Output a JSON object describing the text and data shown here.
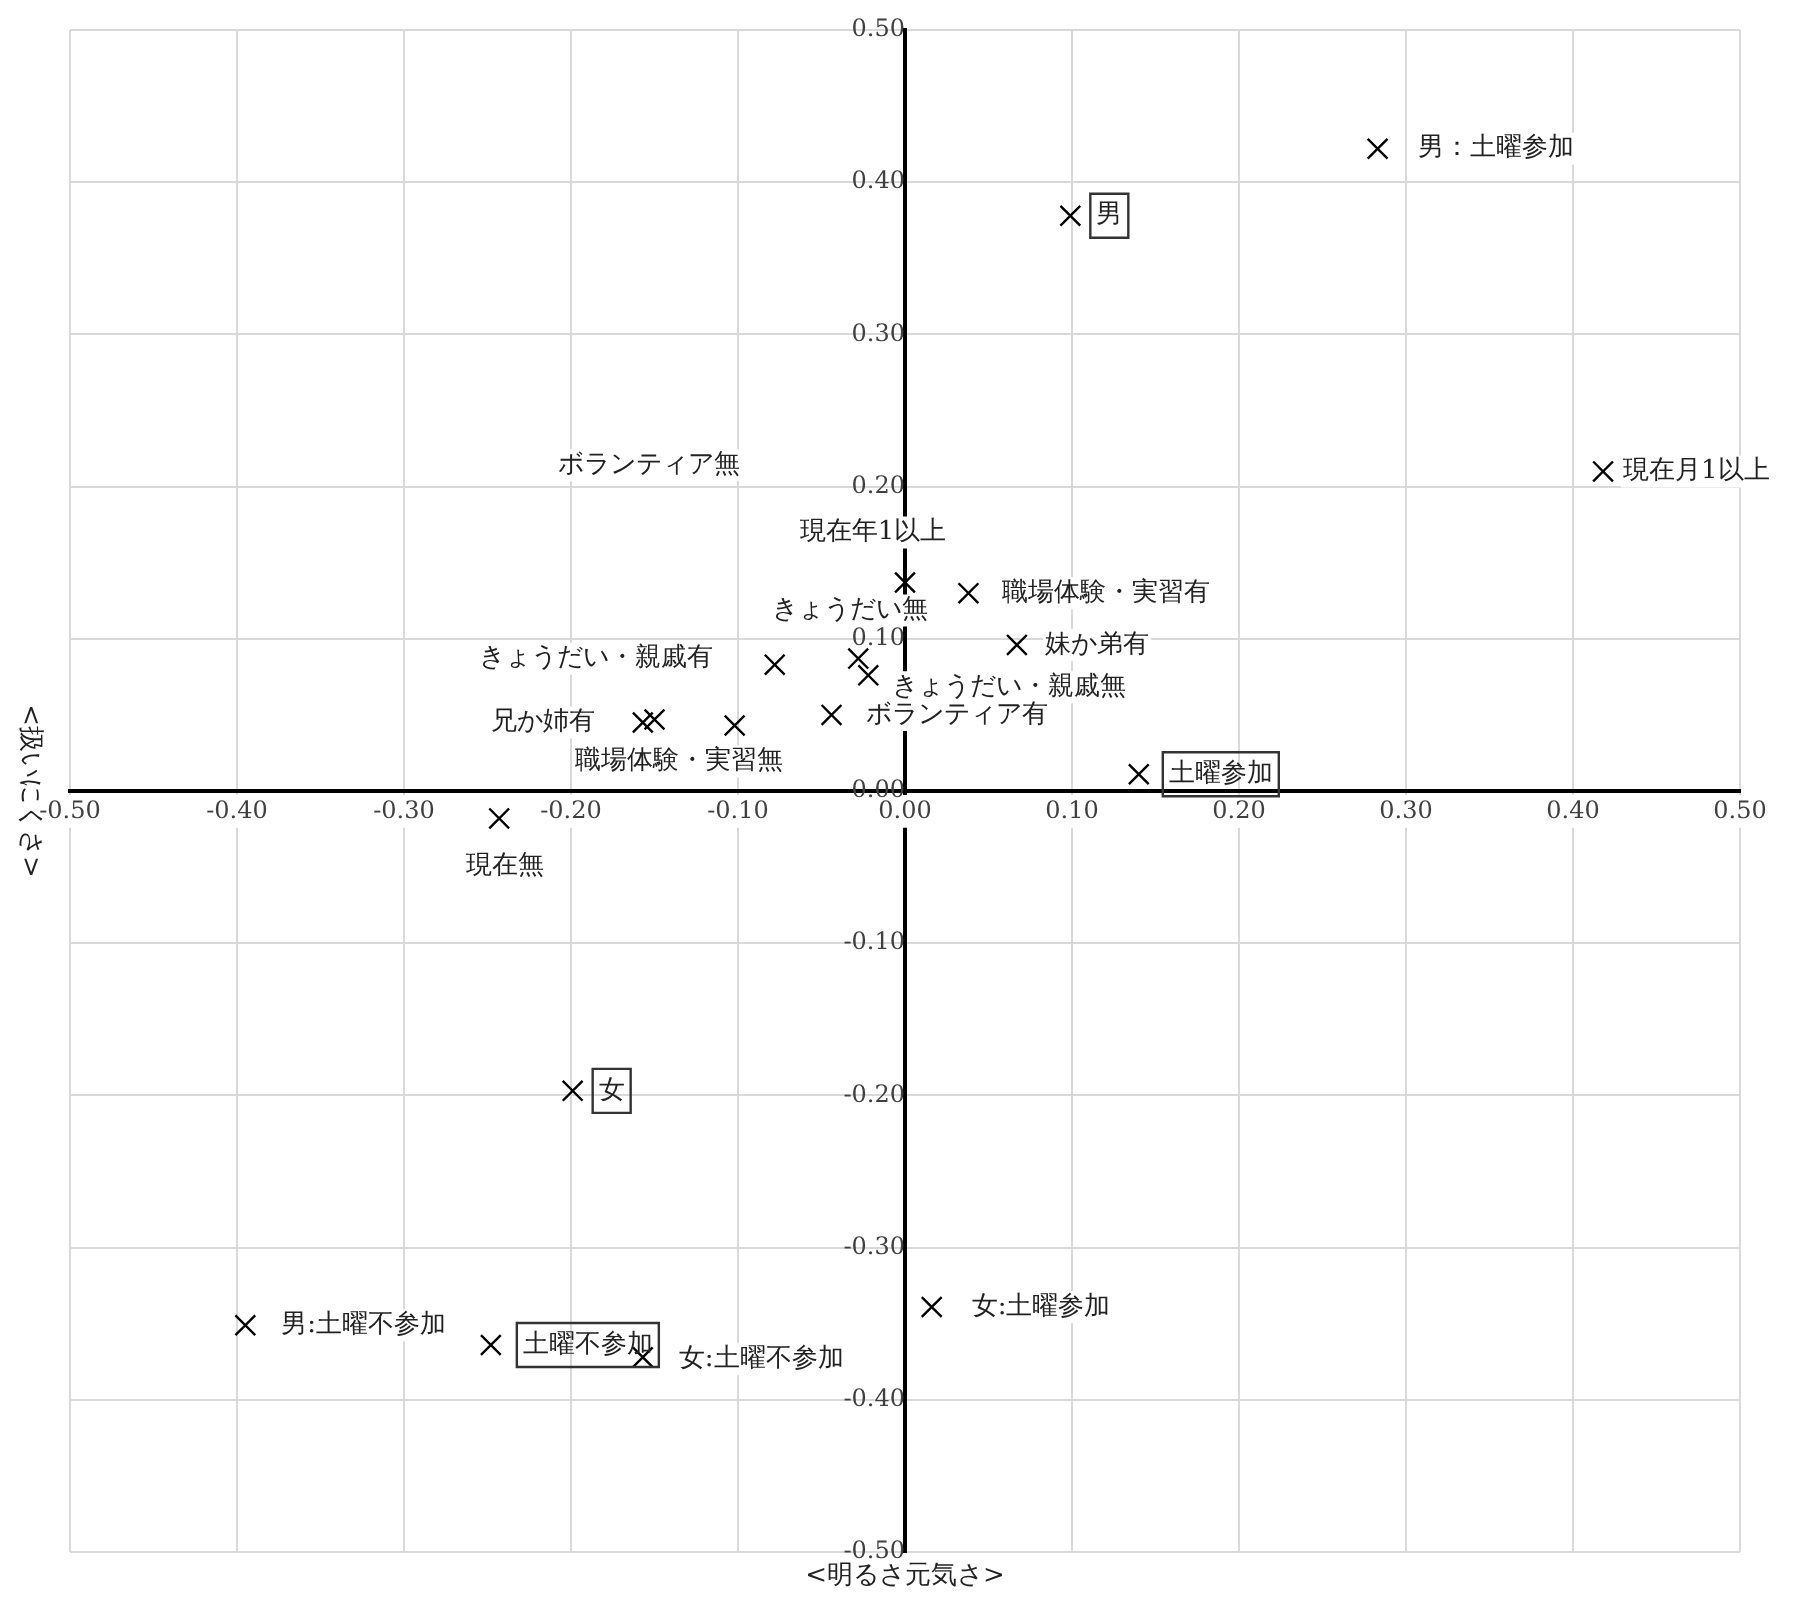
{
  "chart_data": {
    "type": "scatter",
    "xlabel": "<明るさ元気さ>",
    "ylabel": "<扱いにくさ>",
    "series": [
      {
        "color": "#000000",
        "x": [
          0.283,
          0.418,
          0.0,
          0.038,
          0.067,
          -0.028,
          -0.022,
          -0.078,
          -0.157,
          -0.15,
          -0.102,
          -0.044,
          -0.243,
          -0.395,
          -0.157,
          0.016
        ],
        "values": [
          0.422,
          0.21,
          0.137,
          0.13,
          0.096,
          0.087,
          0.076,
          0.083,
          0.045,
          0.047,
          0.043,
          0.05,
          -0.018,
          -0.351,
          -0.372,
          -0.339
        ]
      },
      {
        "color": "#000000",
        "x": [
          0.099,
          0.14,
          -0.199,
          -0.248
        ],
        "values": [
          0.378,
          0.011,
          -0.197,
          -0.364
        ]
      }
    ],
    "annotations": [
      {
        "text": "男：土曜参加",
        "x": 0.283,
        "y": 0.422
      },
      {
        "text": "男",
        "x": 0.099,
        "y": 0.378
      },
      {
        "text": "現在月1以上",
        "x": 0.418,
        "y": 0.21
      },
      {
        "text": "現在年1以上",
        "x": 0.0,
        "y": 0.137
      },
      {
        "text": "職場体験・実習有",
        "x": 0.038,
        "y": 0.13
      },
      {
        "text": "妹か弟有",
        "x": 0.067,
        "y": 0.096
      },
      {
        "text": "きょうだい無",
        "x": -0.028,
        "y": 0.087
      },
      {
        "text": "きょうだい・親戚無",
        "x": -0.022,
        "y": 0.076
      },
      {
        "text": "きょうだい・親戚有",
        "x": -0.078,
        "y": 0.083
      },
      {
        "text": "兄か姉有",
        "x": -0.157,
        "y": 0.045
      },
      "ボランティア無",
      {
        "text": "職場体験・実習無",
        "x": -0.102,
        "y": 0.043
      },
      {
        "text": "ボランティア有",
        "x": -0.044,
        "y": 0.05
      },
      {
        "text": "土曜参加",
        "x": 0.14,
        "y": 0.011
      },
      {
        "text": "現在無",
        "x": -0.243,
        "y": -0.018
      },
      {
        "text": "女",
        "x": -0.199,
        "y": -0.197
      },
      {
        "text": "男:土曜不参加",
        "x": -0.395,
        "y": -0.351
      },
      {
        "text": "土曜不参加",
        "x": -0.248,
        "y": -0.364
      },
      {
        "text": "女:土曜不参加",
        "x": -0.157,
        "y": -0.372
      },
      {
        "text": "女:土曜参加",
        "x": 0.016,
        "y": -0.339
      }
    ],
    "xlim": [
      -0.5,
      0.5
    ],
    "xticks": [
      {
        "value": -0.5,
        "label": "-0.50"
      },
      {
        "value": -0.4,
        "label": "-0.40"
      },
      {
        "value": -0.3,
        "label": "-0.30"
      },
      {
        "value": -0.2,
        "label": "-0.20"
      },
      {
        "value": -0.1,
        "label": "-0.10"
      },
      {
        "value": 0,
        "label": "0.00"
      },
      {
        "value": 0.1,
        "label": "0.10"
      },
      {
        "value": 0.2,
        "label": "0.20"
      },
      {
        "value": 0.3,
        "label": "0.30"
      },
      {
        "value": 0.4,
        "label": "0.40"
      },
      {
        "value": 0.5,
        "label": "0.50"
      }
    ],
    "ylim": [
      -0.5,
      0.5
    ],
    "yticks": [
      {
        "value": -0.5,
        "label": "-0.50"
      },
      {
        "value": -0.4,
        "label": "-0.40"
      },
      {
        "value": -0.3,
        "label": "-0.30"
      },
      {
        "value": -0.2,
        "label": "-0.20"
      },
      {
        "value": -0.1,
        "label": "-0.10"
      },
      {
        "value": 0,
        "label": "0.00"
      },
      {
        "value": 0.1,
        "label": "0.10"
      },
      {
        "value": 0.2,
        "label": "0.20"
      },
      {
        "value": 0.3,
        "label": "0.30"
      },
      {
        "value": 0.4,
        "label": "0.40"
      },
      {
        "value": 0.5,
        "label": "0.50"
      }
    ],
    "grid": true,
    "legend": false,
    "marker": "cross"
  }
}
